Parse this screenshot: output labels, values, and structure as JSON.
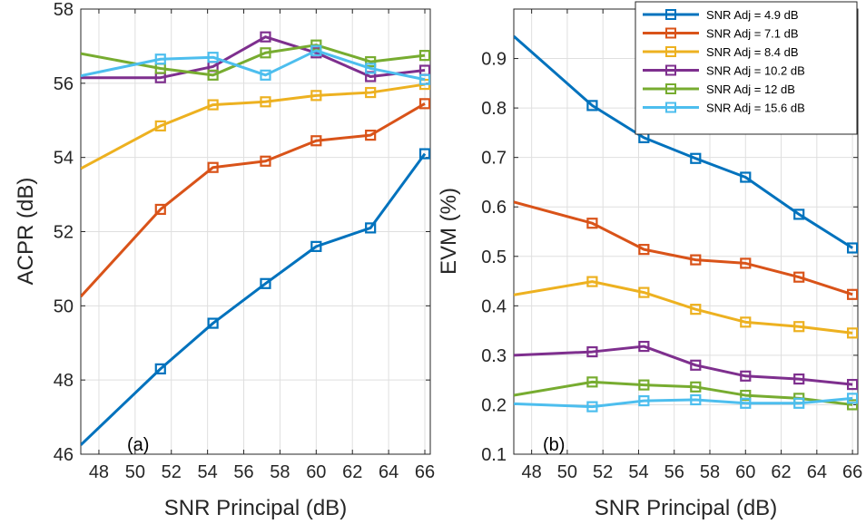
{
  "chart_data": [
    {
      "type": "line",
      "panel": "(a)",
      "title": "",
      "xlabel": "SNR Principal (dB)",
      "ylabel": "ACPR (dB)",
      "xlim": [
        47,
        66.3
      ],
      "ylim": [
        46,
        58
      ],
      "xticks": [
        48,
        50,
        52,
        54,
        56,
        58,
        60,
        62,
        64,
        66
      ],
      "yticks": [
        46,
        48,
        50,
        52,
        54,
        56,
        58
      ],
      "grid": true,
      "x": [
        47,
        51.4,
        54.3,
        57.2,
        60.0,
        63.0,
        66.0
      ],
      "series": [
        {
          "name": "SNR Adj =  4.9 dB",
          "color": "#0072bd",
          "values": [
            46.25,
            48.3,
            49.53,
            50.6,
            51.6,
            52.1,
            54.1
          ]
        },
        {
          "name": "SNR Adj =  7.1 dB",
          "color": "#d95319",
          "values": [
            50.25,
            52.6,
            53.73,
            53.9,
            54.45,
            54.6,
            55.45
          ]
        },
        {
          "name": "SNR Adj =  8.4 dB",
          "color": "#edb120",
          "values": [
            53.7,
            54.85,
            55.42,
            55.5,
            55.67,
            55.75,
            55.97
          ]
        },
        {
          "name": "SNR Adj = 10.2 dB",
          "color": "#7e2f8e",
          "values": [
            56.15,
            56.15,
            56.45,
            57.25,
            56.82,
            56.18,
            56.35
          ]
        },
        {
          "name": "SNR Adj =   12 dB",
          "color": "#77ac30",
          "values": [
            56.8,
            56.4,
            56.22,
            56.82,
            57.03,
            56.58,
            56.75
          ]
        },
        {
          "name": "SNR Adj = 15.6 dB",
          "color": "#4dbeee",
          "values": [
            56.2,
            56.65,
            56.7,
            56.22,
            56.88,
            56.4,
            56.1
          ]
        }
      ]
    },
    {
      "type": "line",
      "panel": "(b)",
      "title": "",
      "xlabel": "SNR Principal (dB)",
      "ylabel": "EVM (%)",
      "xlim": [
        47,
        66.3
      ],
      "ylim": [
        0.1,
        1.0
      ],
      "xticks": [
        48,
        50,
        52,
        54,
        56,
        58,
        60,
        62,
        64,
        66
      ],
      "yticks": [
        0.1,
        0.2,
        0.3,
        0.4,
        0.5,
        0.6,
        0.7,
        0.8,
        0.9
      ],
      "grid": true,
      "legend": "top-right",
      "x": [
        47,
        51.4,
        54.3,
        57.2,
        60.0,
        63.0,
        66.0
      ],
      "series": [
        {
          "name": "SNR Adj =  4.9 dB",
          "color": "#0072bd",
          "values": [
            0.945,
            0.805,
            0.74,
            0.698,
            0.66,
            0.585,
            0.517
          ]
        },
        {
          "name": "SNR Adj =  7.1 dB",
          "color": "#d95319",
          "values": [
            0.61,
            0.567,
            0.514,
            0.493,
            0.486,
            0.458,
            0.423
          ]
        },
        {
          "name": "SNR Adj =  8.4 dB",
          "color": "#edb120",
          "values": [
            0.422,
            0.449,
            0.427,
            0.393,
            0.367,
            0.358,
            0.345
          ]
        },
        {
          "name": "SNR Adj = 10.2 dB",
          "color": "#7e2f8e",
          "values": [
            0.3,
            0.307,
            0.318,
            0.28,
            0.258,
            0.252,
            0.241
          ]
        },
        {
          "name": "SNR Adj =   12 dB",
          "color": "#77ac30",
          "values": [
            0.219,
            0.246,
            0.24,
            0.236,
            0.219,
            0.213,
            0.2
          ]
        },
        {
          "name": "SNR Adj = 15.6 dB",
          "color": "#4dbeee",
          "values": [
            0.202,
            0.196,
            0.208,
            0.21,
            0.203,
            0.203,
            0.213
          ]
        }
      ]
    }
  ]
}
